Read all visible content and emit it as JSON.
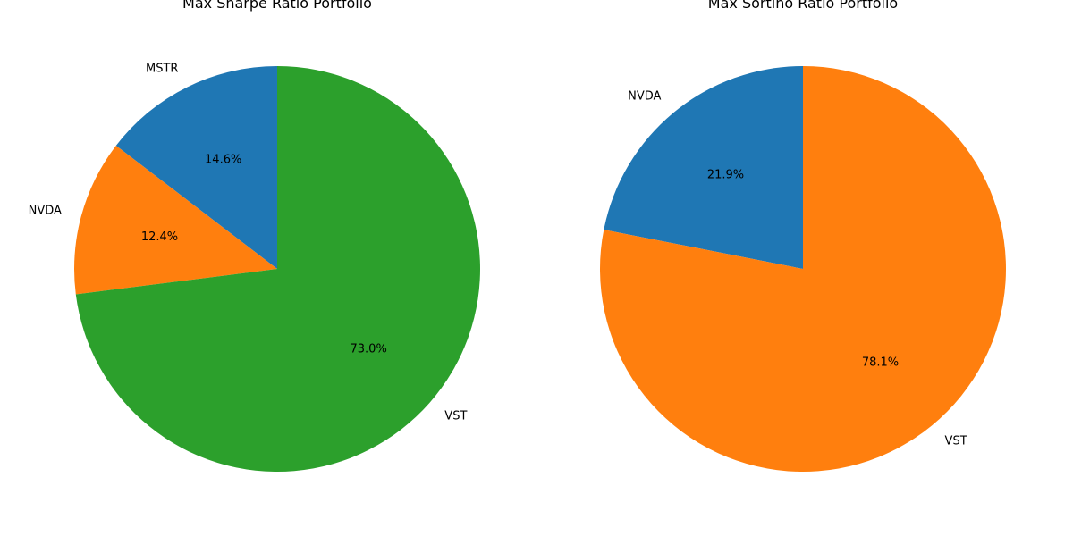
{
  "chart_data": [
    {
      "type": "pie",
      "title": "Max Sharpe Ratio Portfolio",
      "labels": [
        "MSTR",
        "NVDA",
        "VST"
      ],
      "values": [
        14.6,
        12.4,
        73.0
      ],
      "pct_labels": [
        "14.6%",
        "12.4%",
        "73.0%"
      ],
      "colors": [
        "#1f77b4",
        "#ff7f0e",
        "#2ca02c"
      ],
      "start_angle_deg": 90,
      "direction": "counterclockwise"
    },
    {
      "type": "pie",
      "title": "Max Sortino Ratio Portfolio",
      "labels": [
        "NVDA",
        "VST"
      ],
      "values": [
        21.9,
        78.1
      ],
      "pct_labels": [
        "21.9%",
        "78.1%"
      ],
      "colors": [
        "#1f77b4",
        "#ff7f0e"
      ],
      "start_angle_deg": 90,
      "direction": "counterclockwise"
    }
  ]
}
